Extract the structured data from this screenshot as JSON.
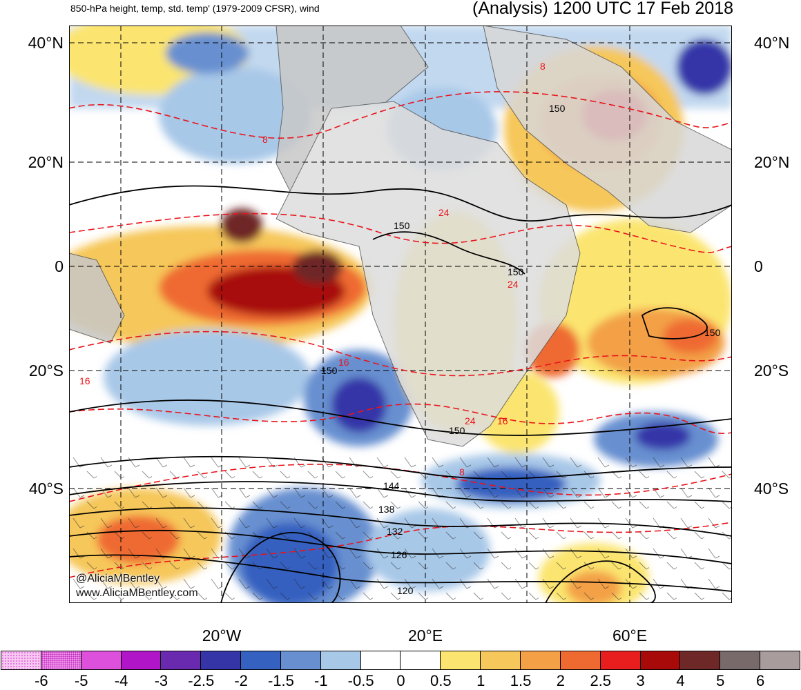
{
  "header": {
    "left_title": "850-hPa height, temp, std. temp' (1979-2009 CFSR), wind",
    "right_title": "(Analysis) 1200 UTC 17 Feb 2018"
  },
  "map": {
    "lat_labels": [
      "40°N",
      "20°N",
      "0",
      "20°S",
      "40°S"
    ],
    "lon_labels": [
      "20°W",
      "20°E",
      "60°E"
    ],
    "height_contour_labels": [
      "150",
      "150",
      "150",
      "150",
      "150",
      "150",
      "144",
      "138",
      "132",
      "126",
      "120"
    ],
    "temp_contour_labels": [
      "8",
      "8",
      "24",
      "24",
      "16",
      "16",
      "24",
      "16",
      "8"
    ],
    "credit": {
      "twitter": "@AliciaMBentley",
      "website": "www.AliciaMBentley.com"
    },
    "colors": {
      "land": "#c8c8c8",
      "height_contour": "#000000",
      "temp_contour": "#e8141b"
    }
  },
  "colorbar": {
    "colors": [
      "#f7c8f2",
      "#ee8ee8",
      "#dc50dc",
      "#b016c8",
      "#6a2ab0",
      "#3535a8",
      "#3561c0",
      "#6890d0",
      "#a8c8e8",
      "#ffffff",
      "#ffffff",
      "#fbe570",
      "#f6c75a",
      "#f3a046",
      "#ef6a30",
      "#e81d1d",
      "#a80a0a",
      "#6e2828",
      "#786a6a",
      "#a89c9c"
    ],
    "labels": [
      "-6",
      "-5",
      "-4",
      "-3",
      "-2.5",
      "-2",
      "-1.5",
      "-1",
      "-0.5",
      "0",
      "0.5",
      "1",
      "1.5",
      "2",
      "2.5",
      "3",
      "4",
      "5",
      "6"
    ]
  }
}
